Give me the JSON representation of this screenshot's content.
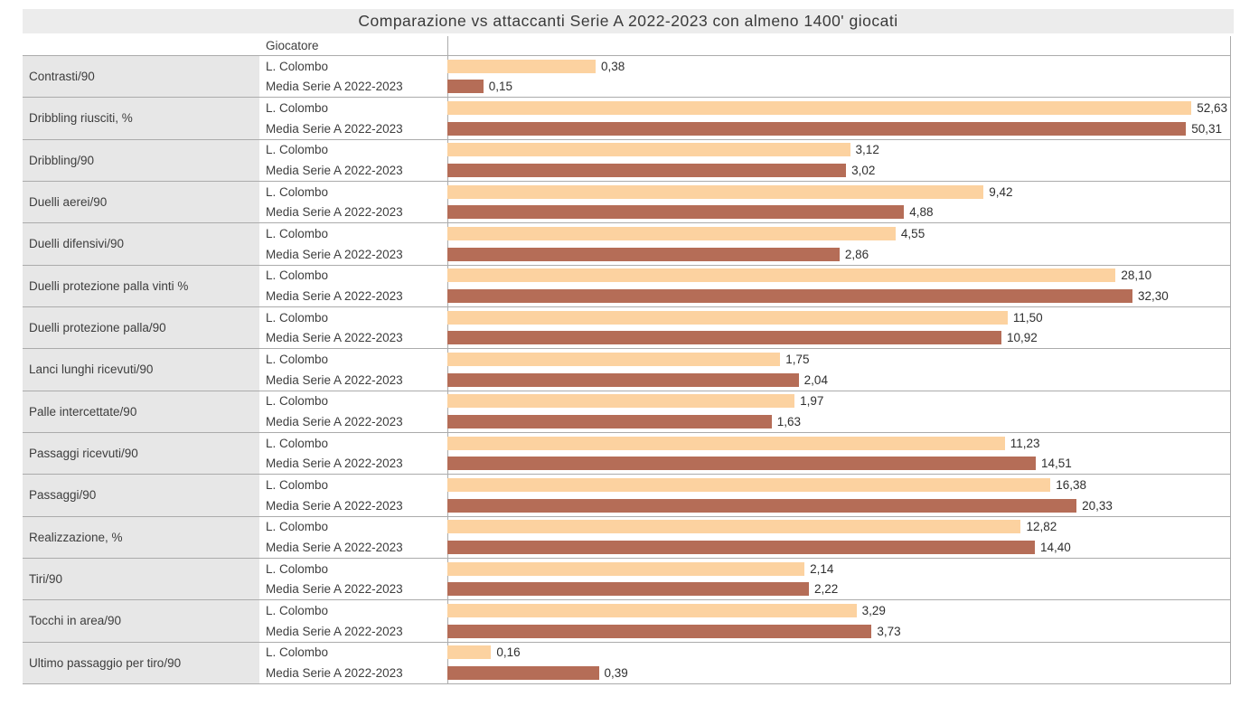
{
  "title": "Comparazione vs attaccanti Serie A 2022-2023 con almeno 1400' giocati",
  "table": {
    "player_column_header": "Giocatore"
  },
  "colors": {
    "player_bar": "#FCD2A0",
    "average_bar": "#B56D57",
    "title_band_bg": "#ECECEC",
    "metric_cell_bg": "#E7E7E7",
    "grid_line": "#ABABAB",
    "text": "#3D3D3D"
  },
  "chart_data": {
    "type": "bar",
    "orientation": "horizontal",
    "title": "Comparazione vs attaccanti Serie A 2022-2023 con almeno 1400' giocati",
    "xlabel": "",
    "ylabel": "",
    "x_scale": "log",
    "x_domain": [
      0.1114,
      73
    ],
    "grid": false,
    "legend_position": "per-row labels (Giocatore column)",
    "value_decimal_separator": ",",
    "categories": [
      "Contrasti/90",
      "Dribbling riusciti, %",
      "Dribbling/90",
      "Duelli aerei/90",
      "Duelli difensivi/90",
      "Duelli protezione palla vinti %",
      "Duelli protezione palla/90",
      "Lanci lunghi ricevuti/90",
      "Palle intercettate/90",
      "Passaggi ricevuti/90",
      "Passaggi/90",
      "Realizzazione, %",
      "Tiri/90",
      "Tocchi in area/90",
      "Ultimo passaggio per tiro/90"
    ],
    "series": [
      {
        "name": "L. Colombo",
        "values": [
          0.38,
          52.63,
          3.12,
          9.42,
          4.55,
          28.1,
          11.5,
          1.75,
          1.97,
          11.23,
          16.38,
          12.82,
          2.14,
          3.29,
          0.16
        ],
        "labels": [
          "0,38",
          "52,63",
          "3,12",
          "9,42",
          "4,55",
          "28,10",
          "11,50",
          "1,75",
          "1,97",
          "11,23",
          "16,38",
          "12,82",
          "2,14",
          "3,29",
          "0,16"
        ]
      },
      {
        "name": "Media Serie A 2022-2023",
        "values": [
          0.15,
          50.31,
          3.02,
          4.88,
          2.86,
          32.3,
          10.92,
          2.04,
          1.63,
          14.51,
          20.33,
          14.4,
          2.22,
          3.73,
          0.39
        ],
        "labels": [
          "0,15",
          "50,31",
          "3,02",
          "4,88",
          "2,86",
          "32,30",
          "10,92",
          "2,04",
          "1,63",
          "14,51",
          "20,33",
          "14,40",
          "2,22",
          "3,73",
          "0,39"
        ]
      }
    ]
  }
}
